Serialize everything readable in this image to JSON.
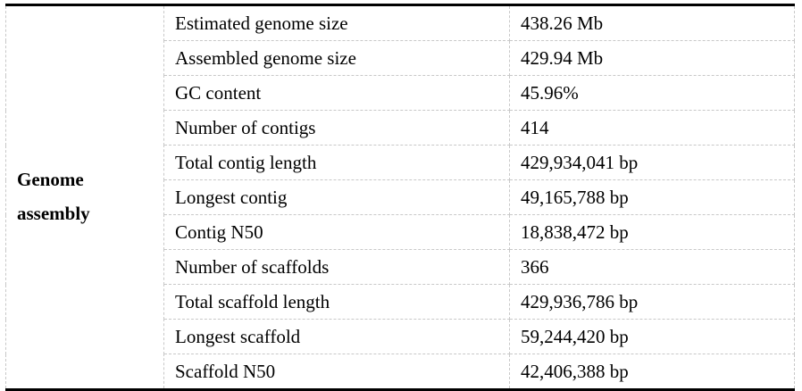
{
  "table": {
    "group_label": "Genome assembly",
    "rows": [
      {
        "label": "Estimated genome size",
        "value": "438.26 Mb"
      },
      {
        "label": "Assembled genome size",
        "value": "429.94 Mb"
      },
      {
        "label": "GC content",
        "value": "45.96%"
      },
      {
        "label": "Number of contigs",
        "value": "414"
      },
      {
        "label": "Total contig length",
        "value": "429,934,041 bp"
      },
      {
        "label": "Longest contig",
        "value": "49,165,788 bp"
      },
      {
        "label": "Contig N50",
        "value": "18,838,472 bp"
      },
      {
        "label": "Number of scaffolds",
        "value": "366"
      },
      {
        "label": "Total scaffold length",
        "value": "429,936,786 bp"
      },
      {
        "label": "Longest scaffold",
        "value": "59,244,420 bp"
      },
      {
        "label": "Scaffold N50",
        "value": "42,406,388 bp"
      }
    ]
  }
}
